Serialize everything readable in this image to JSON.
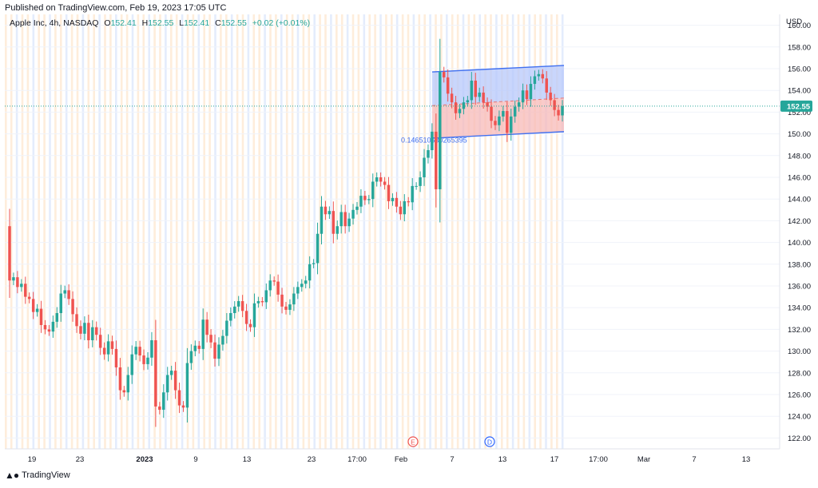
{
  "header": {
    "published": "Published on TradingView.com, Feb 19, 2023 17:05 UTC"
  },
  "legend": {
    "symbol": "Apple Inc, 4h, NASDAQ",
    "o_key": "O",
    "o_val": "152.41",
    "h_key": "H",
    "h_val": "152.55",
    "l_key": "L",
    "l_val": "152.41",
    "c_key": "C",
    "c_val": "152.55",
    "change": "+0.02 (+0.01%)"
  },
  "footer": {
    "brand": "TradingView"
  },
  "colors": {
    "up": "#26a69a",
    "down": "#ef5350",
    "channel_line": "#3f6ff0",
    "channel_upper_fill": "#b7c8fb",
    "channel_lower_fill": "#f7b9b8",
    "price_line": "#26a69a",
    "band_orange": "#fde7cf",
    "band_blue": "#dbe6fb",
    "grid": "#f0f3fa"
  },
  "chart_data": {
    "type": "candlestick",
    "currency": "USD",
    "y_ticks": [
      "160.00",
      "158.00",
      "156.00",
      "154.00",
      "152.00",
      "150.00",
      "148.00",
      "146.00",
      "144.00",
      "142.00",
      "140.00",
      "138.00",
      "136.00",
      "134.00",
      "132.00",
      "130.00",
      "128.00",
      "126.00",
      "124.00",
      "122.00"
    ],
    "ylim": [
      121,
      161
    ],
    "x_ticks": [
      "19",
      "23",
      "2023",
      "9",
      "13",
      "23",
      "17:00",
      "Feb",
      "7",
      "13",
      "17",
      "17:00",
      "Mar",
      "7",
      "13"
    ],
    "current_price": "152.55",
    "channel_label": "0.146510530265395",
    "event_markers": [
      "E",
      "D"
    ],
    "closes": [
      136.5,
      136.8,
      135.9,
      136.2,
      135.0,
      134.8,
      133.6,
      133.9,
      132.4,
      132.0,
      131.8,
      132.7,
      133.5,
      135.3,
      135.6,
      134.8,
      133.4,
      132.3,
      131.6,
      132.6,
      131.0,
      132.2,
      131.5,
      130.3,
      129.7,
      130.9,
      130.2,
      128.5,
      126.4,
      126.2,
      127.8,
      129.7,
      130.4,
      129.6,
      128.8,
      129.4,
      131.0,
      124.9,
      124.6,
      126.2,
      127.8,
      128.2,
      126.4,
      125.0,
      124.8,
      128.9,
      130.0,
      130.5,
      130.2,
      132.9,
      131.5,
      130.8,
      129.3,
      130.6,
      131.4,
      132.8,
      133.5,
      134.1,
      134.6,
      133.7,
      132.5,
      132.2,
      134.4,
      134.6,
      134.5,
      135.6,
      136.5,
      136.4,
      135.2,
      134.1,
      133.8,
      134.3,
      135.3,
      135.9,
      136.2,
      136.5,
      138.0,
      138.1,
      140.8,
      143.3,
      142.6,
      142.9,
      140.8,
      141.5,
      142.8,
      141.5,
      142.2,
      143.0,
      143.3,
      144.3,
      143.9,
      144.0,
      145.6,
      146.0,
      145.6,
      145.3,
      143.8,
      144.1,
      143.3,
      142.6,
      143.8,
      143.7,
      145.2,
      145.2,
      146.0,
      147.8,
      148.5,
      150.2,
      144.9,
      155.7,
      155.2,
      153.7,
      152.9,
      151.9,
      152.3,
      152.9,
      153.1,
      154.9,
      153.4,
      153.8,
      152.9,
      152.5,
      151.2,
      150.8,
      151.6,
      152.1,
      150.1,
      151.6,
      152.5,
      152.9,
      154.0,
      153.2,
      154.6,
      155.3,
      155.5,
      155.1,
      153.8,
      153.1,
      152.2,
      151.7,
      152.55
    ]
  }
}
